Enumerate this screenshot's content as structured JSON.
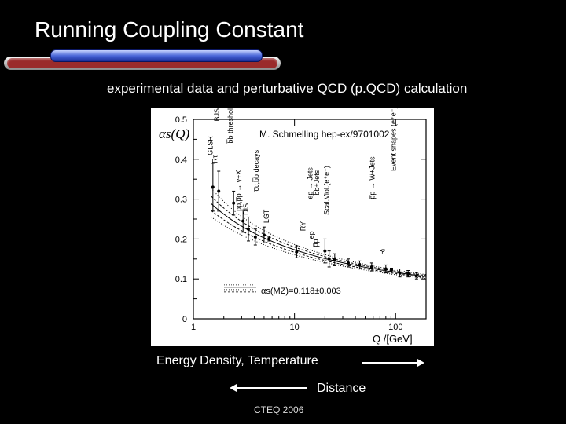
{
  "slide": {
    "title": "Running Coupling Constant",
    "subtitle": "experimental data and perturbative QCD (p.QCD) calculation",
    "energy_label": "Energy Density, Temperature",
    "distance_label": "Distance",
    "footer": "CTEQ 2006"
  },
  "chart_data": {
    "type": "scatter",
    "ylabel": "αs(Q)",
    "xlabel": "Q /[GeV]",
    "annotation": "M. Schmelling hep-ex/9701002",
    "legend_text": "αs(MZ)=0.118±0.003",
    "xscale": "log",
    "xlim": [
      1,
      200
    ],
    "ylim": [
      0,
      0.5
    ],
    "x_ticks": [
      {
        "value": 1,
        "label": "1"
      },
      {
        "value": 10,
        "label": "10"
      },
      {
        "value": 100,
        "label": "100"
      }
    ],
    "y_ticks": [
      {
        "value": 0,
        "label": "0"
      },
      {
        "value": 0.1,
        "label": "0.1"
      },
      {
        "value": 0.2,
        "label": "0.2"
      },
      {
        "value": 0.3,
        "label": "0.3"
      },
      {
        "value": 0.4,
        "label": "0.4"
      },
      {
        "value": 0.5,
        "label": "0.5"
      }
    ],
    "process_labels": [
      {
        "text": "BJSR",
        "x": 1.8,
        "y": 0.495
      },
      {
        "text": "GLSR",
        "x": 1.55,
        "y": 0.41
      },
      {
        "text": "Rτ",
        "x": 1.72,
        "y": 0.39
      },
      {
        "text": "b̅b threshold",
        "x": 2.45,
        "y": 0.44
      },
      {
        "text": "pp,p̅p → γ+X",
        "x": 2.95,
        "y": 0.27
      },
      {
        "text": "DIS",
        "x": 3.5,
        "y": 0.26
      },
      {
        "text": "c̅c,b̅b decays",
        "x": 4.4,
        "y": 0.32
      },
      {
        "text": "LGT",
        "x": 5.6,
        "y": 0.24
      },
      {
        "text": "RY",
        "x": 12.8,
        "y": 0.22
      },
      {
        "text": "ep → Jets",
        "x": 15,
        "y": 0.3
      },
      {
        "text": "b̅b+Jets",
        "x": 17.5,
        "y": 0.31
      },
      {
        "text": "ep",
        "x": 15.5,
        "y": 0.2
      },
      {
        "text": "p̅p",
        "x": 17,
        "y": 0.18
      },
      {
        "text": "Scal.Viol.(e⁺e⁻)",
        "x": 22,
        "y": 0.26
      },
      {
        "text": "p̅p → W+Jets",
        "x": 62,
        "y": 0.3
      },
      {
        "text": "Rₗ",
        "x": 78,
        "y": 0.16
      },
      {
        "text": "Event shapes (e⁺e⁻)",
        "x": 100,
        "y": 0.37
      }
    ],
    "series": [
      {
        "values": [
          {
            "x": 1.56,
            "y": 0.33,
            "err": 0.06
          },
          {
            "x": 1.78,
            "y": 0.32,
            "err": 0.05
          },
          {
            "x": 2.5,
            "y": 0.29,
            "err": 0.03
          },
          {
            "x": 3.1,
            "y": 0.245,
            "err": 0.028
          },
          {
            "x": 3.5,
            "y": 0.225,
            "err": 0.03
          },
          {
            "x": 4.1,
            "y": 0.205,
            "err": 0.02
          },
          {
            "x": 5.0,
            "y": 0.21,
            "err": 0.02
          },
          {
            "x": 5.6,
            "y": 0.2,
            "err": 0.005
          },
          {
            "x": 10.5,
            "y": 0.168,
            "err": 0.015
          },
          {
            "x": 20,
            "y": 0.17,
            "err": 0.03
          },
          {
            "x": 22,
            "y": 0.15,
            "err": 0.02
          },
          {
            "x": 25,
            "y": 0.148,
            "err": 0.015
          },
          {
            "x": 34,
            "y": 0.14,
            "err": 0.01
          },
          {
            "x": 44,
            "y": 0.135,
            "err": 0.01
          },
          {
            "x": 58,
            "y": 0.13,
            "err": 0.01
          },
          {
            "x": 80,
            "y": 0.125,
            "err": 0.01
          },
          {
            "x": 91,
            "y": 0.122,
            "err": 0.005
          },
          {
            "x": 110,
            "y": 0.115,
            "err": 0.01
          },
          {
            "x": 133,
            "y": 0.113,
            "err": 0.008
          },
          {
            "x": 161,
            "y": 0.108,
            "err": 0.008
          }
        ]
      }
    ],
    "curve": {
      "alpha_mz": 0.118,
      "band": 0.003
    }
  }
}
